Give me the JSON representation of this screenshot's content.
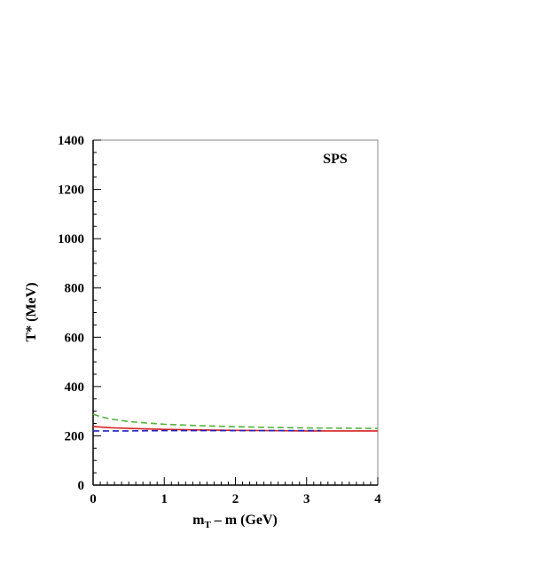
{
  "chart_data": {
    "type": "line",
    "annotation": "SPS",
    "xlabel_main": "m",
    "xlabel_sub": "T",
    "xlabel_rest": " – m (GeV)",
    "ylabel": "T* (MeV)",
    "xlim": [
      0,
      4
    ],
    "ylim": [
      0,
      1400
    ],
    "xticks": [
      0,
      1,
      2,
      3,
      4
    ],
    "yticks": [
      0,
      200,
      400,
      600,
      800,
      1000,
      1200,
      1400
    ],
    "grid": false,
    "series": [
      {
        "color": "#d62020",
        "dash": "solid",
        "x": [
          0,
          0.25,
          0.5,
          1,
          1.5,
          2,
          2.5,
          3,
          3.5,
          4
        ],
        "y": [
          238,
          233,
          230,
          226,
          224,
          222,
          221,
          220,
          220,
          220
        ]
      },
      {
        "color": "#55b040",
        "dash": "dashed",
        "x": [
          0,
          0.1,
          0.25,
          0.5,
          0.75,
          1,
          1.5,
          2,
          2.5,
          3,
          3.5,
          4
        ],
        "y": [
          288,
          278,
          268,
          258,
          252,
          247,
          241,
          237,
          234,
          232,
          231,
          230
        ]
      },
      {
        "color": "#2020c0",
        "dash": "dashed",
        "x": [
          0,
          0.5,
          1,
          1.5,
          2,
          2.5,
          3,
          3.2
        ],
        "y": [
          220,
          220,
          221,
          221,
          221,
          221,
          221,
          221
        ]
      }
    ]
  }
}
